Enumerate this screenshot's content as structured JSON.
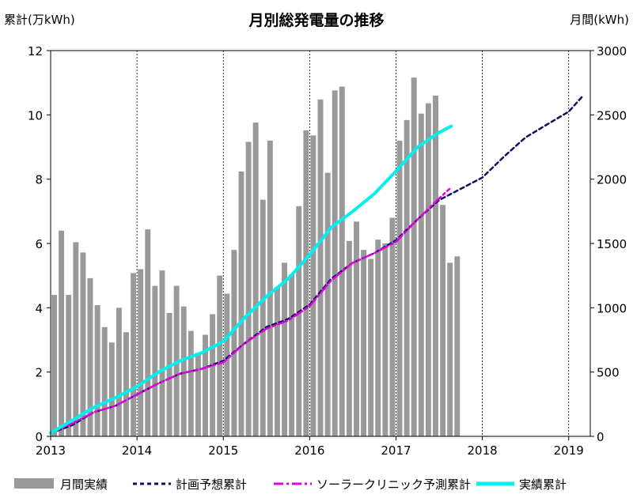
{
  "chart_data": {
    "type": "bar+line",
    "title": "月別総発電量の推移",
    "ylabel_left": "累計(万kWh)",
    "ylabel_right": "月間(kWh)",
    "ylim_left": [
      0,
      12
    ],
    "ylim_right": [
      0,
      3000
    ],
    "yticks_left": [
      "0",
      "2",
      "4",
      "6",
      "8",
      "10",
      "12"
    ],
    "yticks_right": [
      "0",
      "500",
      "1000",
      "1500",
      "2000",
      "2500",
      "3000"
    ],
    "xticks": [
      "2013",
      "2014",
      "2015",
      "2016",
      "2017",
      "2018",
      "2019"
    ],
    "x_range": [
      2013,
      2019.25
    ],
    "bar_series": {
      "name": "月間実績",
      "start": 2013.0,
      "values": [
        1100,
        1600,
        1100,
        1510,
        1430,
        1230,
        1020,
        850,
        730,
        1000,
        810,
        1270,
        1300,
        1610,
        1170,
        1290,
        960,
        1170,
        1010,
        820,
        650,
        790,
        950,
        1250,
        1110,
        1450,
        2060,
        2290,
        2440,
        1840,
        2300,
        1160,
        1350,
        1260,
        1790,
        2380,
        2340,
        2620,
        2050,
        2690,
        2720,
        1520,
        1670,
        1450,
        1380,
        1530,
        1500,
        1700,
        2300,
        2460,
        2790,
        2510,
        2590,
        2650,
        1800,
        1350,
        1400
      ]
    },
    "line_series": [
      {
        "name": "計画予想累計",
        "style": "dashed",
        "color": "#101060",
        "x": [
          2013.0,
          2013.25,
          2013.5,
          2013.75,
          2014.0,
          2014.25,
          2014.5,
          2014.75,
          2015.0,
          2015.25,
          2015.5,
          2015.75,
          2016.0,
          2016.25,
          2016.5,
          2016.75,
          2017.0,
          2017.25,
          2017.5,
          2017.75,
          2018.0,
          2018.25,
          2018.5,
          2018.75,
          2019.0,
          2019.15
        ],
        "y": [
          0.1,
          0.35,
          0.75,
          0.95,
          1.3,
          1.65,
          1.95,
          2.1,
          2.35,
          2.9,
          3.4,
          3.65,
          4.1,
          4.9,
          5.4,
          5.7,
          6.1,
          6.75,
          7.35,
          7.7,
          8.05,
          8.7,
          9.3,
          9.7,
          10.1,
          10.55
        ]
      },
      {
        "name": "ソーラークリニック予測累計",
        "style": "dashdot",
        "color": "#e000e0",
        "x": [
          2013.0,
          2013.25,
          2013.5,
          2013.75,
          2014.0,
          2014.25,
          2014.5,
          2014.75,
          2015.0,
          2015.25,
          2015.5,
          2015.75,
          2016.0,
          2016.25,
          2016.5,
          2016.75,
          2017.0,
          2017.25,
          2017.5,
          2017.62
        ],
        "y": [
          0.1,
          0.4,
          0.75,
          0.95,
          1.3,
          1.65,
          1.95,
          2.1,
          2.3,
          2.9,
          3.35,
          3.6,
          4.05,
          4.85,
          5.4,
          5.7,
          6.05,
          6.75,
          7.4,
          7.7
        ]
      },
      {
        "name": "実績累計",
        "style": "solid",
        "color": "#00f0f0",
        "x": [
          2013.0,
          2013.25,
          2013.5,
          2013.75,
          2014.0,
          2014.25,
          2014.5,
          2014.75,
          2015.0,
          2015.25,
          2015.5,
          2015.75,
          2016.0,
          2016.25,
          2016.5,
          2016.75,
          2017.0,
          2017.25,
          2017.5,
          2017.64
        ],
        "y": [
          0.1,
          0.5,
          0.9,
          1.2,
          1.55,
          2.0,
          2.35,
          2.6,
          2.95,
          3.7,
          4.35,
          4.9,
          5.65,
          6.5,
          7.0,
          7.55,
          8.25,
          9.0,
          9.45,
          9.65
        ]
      }
    ],
    "legend": [
      "月間実績",
      "計画予想累計",
      "ソーラークリニック予測累計",
      "実績累計"
    ],
    "legend_position": "bottom",
    "grid": "vertical-dashed-at-year-ticks"
  }
}
